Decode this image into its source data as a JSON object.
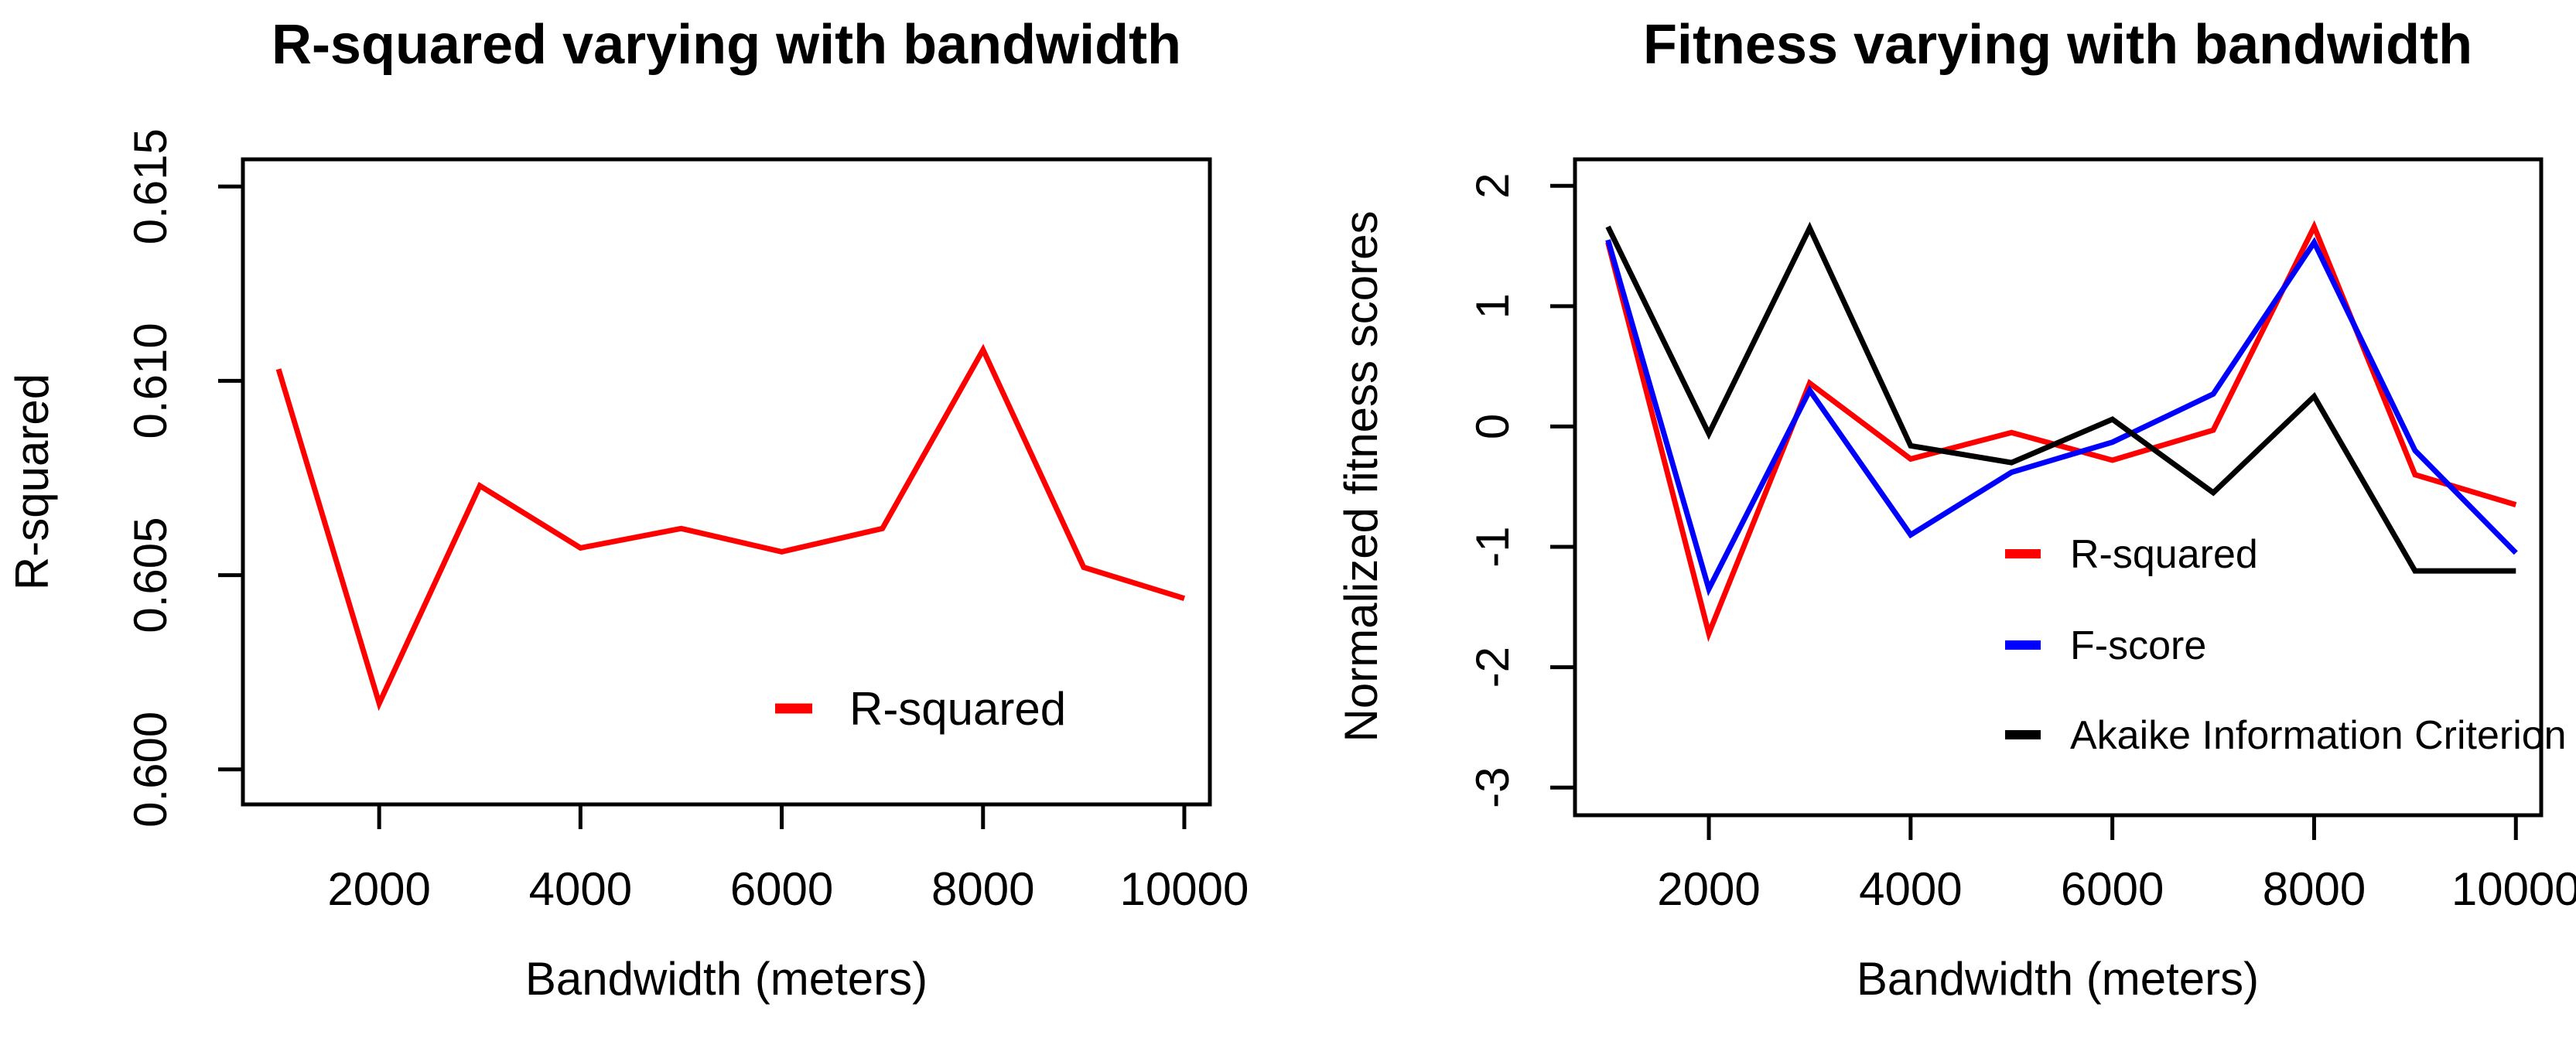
{
  "page": {
    "background": "#ffffff",
    "description": "Two side-by-side line plots of model fitness metrics versus kernel bandwidth"
  },
  "colors": {
    "r_squared": "#ff0000",
    "f_score": "#0000ff",
    "aic": "#000000",
    "axis": "#000000"
  },
  "chart_data": [
    {
      "id": "rsq",
      "type": "line",
      "title": "R-squared varying with bandwidth",
      "xlabel": "Bandwidth (meters)",
      "ylabel": "R-squared",
      "x": [
        1000,
        2000,
        3000,
        4000,
        5000,
        6000,
        7000,
        8000,
        9000,
        10000
      ],
      "series": [
        {
          "name": "R-squared",
          "color": "#ff0000",
          "values": [
            0.6103,
            0.6017,
            0.6073,
            0.6057,
            0.6062,
            0.6056,
            0.6062,
            0.6108,
            0.6052,
            0.6044
          ]
        }
      ],
      "xticks": {
        "values": [
          2000,
          4000,
          6000,
          8000,
          10000
        ],
        "labels": [
          "2000",
          "4000",
          "6000",
          "8000",
          "10000"
        ]
      },
      "yticks": {
        "values": [
          0.6,
          0.605,
          0.61,
          0.615
        ],
        "labels": [
          "0.600",
          "0.605",
          "0.610",
          "0.615"
        ]
      },
      "xlim": [
        646,
        10254
      ],
      "ylim": [
        0.5991,
        0.6157
      ],
      "grid": false,
      "legend": {
        "position": "inside-bottom-right",
        "items": [
          {
            "label": "R-squared",
            "color": "#ff0000"
          }
        ]
      }
    },
    {
      "id": "fitness",
      "type": "line",
      "title": "Fitness varying with bandwidth",
      "xlabel": "Bandwidth (meters)",
      "ylabel": "Normalized fitness scores",
      "x": [
        1000,
        2000,
        3000,
        4000,
        5000,
        6000,
        7000,
        8000,
        9000,
        10000
      ],
      "series": [
        {
          "name": "R-squared",
          "color": "#ff0000",
          "values": [
            1.53,
            -1.72,
            0.36,
            -0.27,
            -0.05,
            -0.28,
            -0.03,
            1.66,
            -0.4,
            -0.65
          ]
        },
        {
          "name": "F-score",
          "color": "#0000ff",
          "values": [
            1.55,
            -1.35,
            0.3,
            -0.9,
            -0.38,
            -0.13,
            0.27,
            1.53,
            -0.2,
            -1.05
          ]
        },
        {
          "name": "Akaike Information Criterion",
          "color": "#000000",
          "values": [
            1.66,
            -0.06,
            1.65,
            -0.16,
            -0.3,
            0.06,
            -0.55,
            0.25,
            -1.2,
            -1.2
          ]
        }
      ],
      "xticks": {
        "values": [
          2000,
          4000,
          6000,
          8000,
          10000
        ],
        "labels": [
          "2000",
          "4000",
          "6000",
          "8000",
          "10000"
        ]
      },
      "yticks": {
        "values": [
          -3,
          -2,
          -1,
          0,
          1,
          2
        ],
        "labels": [
          "-3",
          "-2",
          "-1",
          "0",
          "1",
          "2"
        ]
      },
      "xlim": [
        673,
        10251
      ],
      "ylim": [
        -3.23,
        2.22
      ],
      "grid": false,
      "legend": {
        "position": "inside-right",
        "items": [
          {
            "label": "R-squared",
            "color": "#ff0000"
          },
          {
            "label": "F-score",
            "color": "#0000ff"
          },
          {
            "label": "Akaike Information Criterion",
            "color": "#000000"
          }
        ]
      }
    }
  ]
}
